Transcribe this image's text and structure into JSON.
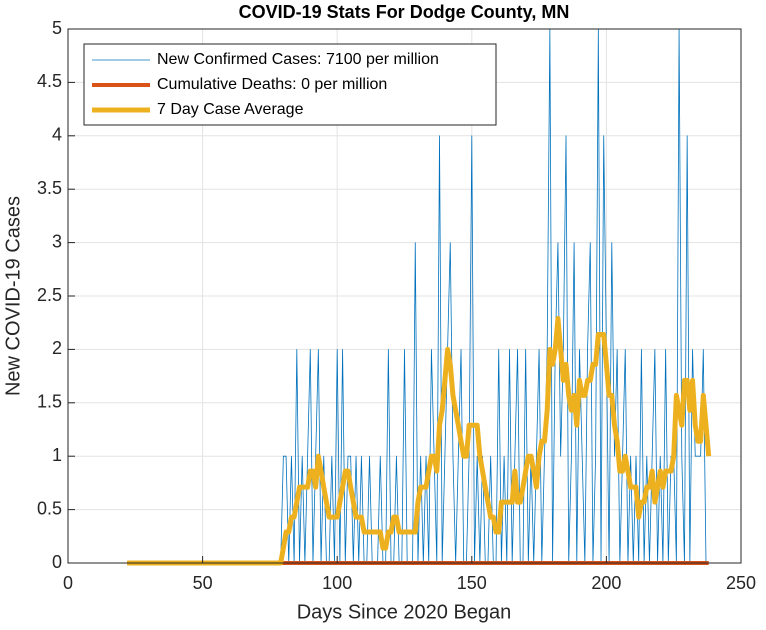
{
  "chart_data": {
    "type": "line",
    "title": "COVID-19 Stats For Dodge County, MN",
    "xlabel": "Days Since 2020 Began",
    "ylabel": "New COVID-19 Cases",
    "xlim": [
      0,
      250
    ],
    "xticks": [
      0,
      50,
      100,
      150,
      200,
      250
    ],
    "ylim": [
      0,
      5
    ],
    "yticks": [
      0,
      0.5,
      1,
      1.5,
      2,
      2.5,
      3,
      3.5,
      4,
      4.5,
      5
    ],
    "grid": true,
    "legend": "upper left",
    "x": [
      22,
      23,
      24,
      25,
      26,
      27,
      28,
      29,
      30,
      31,
      32,
      33,
      34,
      35,
      36,
      37,
      38,
      39,
      40,
      41,
      42,
      43,
      44,
      45,
      46,
      47,
      48,
      49,
      50,
      51,
      52,
      53,
      54,
      55,
      56,
      57,
      58,
      59,
      60,
      61,
      62,
      63,
      64,
      65,
      66,
      67,
      68,
      69,
      70,
      71,
      72,
      73,
      74,
      75,
      76,
      77,
      78,
      79,
      80,
      81,
      82,
      83,
      84,
      85,
      86,
      87,
      88,
      89,
      90,
      91,
      92,
      93,
      94,
      95,
      96,
      97,
      98,
      99,
      100,
      101,
      102,
      103,
      104,
      105,
      106,
      107,
      108,
      109,
      110,
      111,
      112,
      113,
      114,
      115,
      116,
      117,
      118,
      119,
      120,
      121,
      122,
      123,
      124,
      125,
      126,
      127,
      128,
      129,
      130,
      131,
      132,
      133,
      134,
      135,
      136,
      137,
      138,
      139,
      140,
      141,
      142,
      143,
      144,
      145,
      146,
      147,
      148,
      149,
      150,
      151,
      152,
      153,
      154,
      155,
      156,
      157,
      158,
      159,
      160,
      161,
      162,
      163,
      164,
      165,
      166,
      167,
      168,
      169,
      170,
      171,
      172,
      173,
      174,
      175,
      176,
      177,
      178,
      179,
      180,
      181,
      182,
      183,
      184,
      185,
      186,
      187,
      188,
      189,
      190,
      191,
      192,
      193,
      194,
      195,
      196,
      197,
      198,
      199,
      200,
      201,
      202,
      203,
      204,
      205,
      206,
      207,
      208,
      209,
      210,
      211,
      212,
      213,
      214,
      215,
      216,
      217,
      218,
      219,
      220,
      221,
      222,
      223,
      224,
      225,
      226,
      227,
      228,
      229,
      230,
      231,
      232,
      233,
      234,
      235,
      236,
      237,
      238
    ],
    "series": [
      {
        "name": "New Confirmed Cases: 7100 per million",
        "color": "#0072bd",
        "width": 0.8,
        "values": [
          0,
          0,
          0,
          0,
          0,
          0,
          0,
          0,
          0,
          0,
          0,
          0,
          0,
          0,
          0,
          0,
          0,
          0,
          0,
          0,
          0,
          0,
          0,
          0,
          0,
          0,
          0,
          0,
          0,
          0,
          0,
          0,
          0,
          0,
          0,
          0,
          0,
          0,
          0,
          0,
          0,
          0,
          0,
          0,
          0,
          0,
          0,
          0,
          0,
          0,
          0,
          0,
          0,
          0,
          0,
          0,
          0,
          0,
          1,
          1,
          0,
          1,
          0,
          2,
          0,
          1,
          0,
          1,
          2,
          0,
          1,
          2,
          0,
          1,
          0,
          0,
          1,
          0,
          2,
          0,
          2,
          0,
          1,
          1,
          0,
          1,
          0,
          1,
          0,
          0,
          1,
          0,
          0,
          0,
          1,
          0,
          0,
          2,
          0,
          0,
          1,
          0,
          0,
          2,
          0,
          0,
          0,
          3,
          0,
          1,
          0,
          1,
          0,
          2,
          1,
          0,
          4,
          0,
          1,
          2,
          3,
          1,
          0,
          1,
          2,
          0,
          0,
          1,
          4,
          0,
          1,
          0,
          1,
          0,
          0,
          1,
          0,
          0,
          2,
          0,
          1,
          0,
          2,
          0,
          1,
          2,
          0,
          0,
          2,
          0,
          1,
          0,
          1,
          2,
          0,
          1,
          2,
          5,
          0,
          2,
          3,
          1,
          2,
          4,
          0,
          1,
          3,
          0,
          2,
          1,
          0,
          2,
          3,
          0,
          1,
          5,
          0,
          4,
          2,
          0,
          3,
          1,
          2,
          0,
          1,
          2,
          0,
          1,
          0,
          1,
          0,
          2,
          0,
          1,
          0,
          1,
          2,
          0,
          1,
          0,
          2,
          0,
          1,
          1,
          0,
          5,
          1,
          0,
          4,
          0,
          2,
          1,
          1,
          1,
          2,
          0,
          0
        ]
      },
      {
        "name": "Cumulative Deaths: 0 per million",
        "color": "#d95319",
        "width": 4,
        "values": [
          0,
          0,
          0,
          0,
          0,
          0,
          0,
          0,
          0,
          0,
          0,
          0,
          0,
          0,
          0,
          0,
          0,
          0,
          0,
          0,
          0,
          0,
          0,
          0,
          0,
          0,
          0,
          0,
          0,
          0,
          0,
          0,
          0,
          0,
          0,
          0,
          0,
          0,
          0,
          0,
          0,
          0,
          0,
          0,
          0,
          0,
          0,
          0,
          0,
          0,
          0,
          0,
          0,
          0,
          0,
          0,
          0,
          0,
          0,
          0,
          0,
          0,
          0,
          0,
          0,
          0,
          0,
          0,
          0,
          0,
          0,
          0,
          0,
          0,
          0,
          0,
          0,
          0,
          0,
          0,
          0,
          0,
          0,
          0,
          0,
          0,
          0,
          0,
          0,
          0,
          0,
          0,
          0,
          0,
          0,
          0,
          0,
          0,
          0,
          0,
          0,
          0,
          0,
          0,
          0,
          0,
          0,
          0,
          0,
          0,
          0,
          0,
          0,
          0,
          0,
          0,
          0,
          0,
          0,
          0,
          0,
          0,
          0,
          0,
          0,
          0,
          0,
          0,
          0,
          0,
          0,
          0,
          0,
          0,
          0,
          0,
          0,
          0,
          0,
          0,
          0,
          0,
          0,
          0,
          0,
          0,
          0,
          0,
          0,
          0,
          0,
          0,
          0,
          0,
          0,
          0,
          0,
          0,
          0,
          0,
          0,
          0,
          0,
          0,
          0,
          0,
          0,
          0,
          0,
          0,
          0,
          0,
          0,
          0,
          0,
          0,
          0,
          0,
          0,
          0,
          0,
          0,
          0,
          0,
          0,
          0,
          0,
          0,
          0,
          0,
          0,
          0,
          0,
          0,
          0,
          0,
          0,
          0,
          0,
          0,
          0,
          0,
          0,
          0,
          0,
          0,
          0,
          0,
          0,
          0,
          0,
          0,
          0,
          0,
          0,
          0,
          0
        ]
      },
      {
        "name": "7 Day Case Average",
        "color": "#edb120",
        "width": 5,
        "values": [
          0,
          0,
          0,
          0,
          0,
          0,
          0,
          0,
          0,
          0,
          0,
          0,
          0,
          0,
          0,
          0,
          0,
          0,
          0,
          0,
          0,
          0,
          0,
          0,
          0,
          0,
          0,
          0,
          0,
          0,
          0,
          0,
          0,
          0,
          0,
          0,
          0,
          0,
          0,
          0,
          0,
          0,
          0,
          0,
          0,
          0,
          0,
          0,
          0,
          0,
          0,
          0,
          0,
          0,
          0,
          0,
          0,
          0,
          0.14,
          0.29,
          0.29,
          0.43,
          0.43,
          0.57,
          0.71,
          0.71,
          0.71,
          0.71,
          0.86,
          0.86,
          0.71,
          1.0,
          0.86,
          0.71,
          0.57,
          0.43,
          0.43,
          0.43,
          0.43,
          0.57,
          0.71,
          0.86,
          0.86,
          0.71,
          0.57,
          0.43,
          0.43,
          0.43,
          0.29,
          0.29,
          0.29,
          0.29,
          0.29,
          0.29,
          0.29,
          0.14,
          0.14,
          0.29,
          0.29,
          0.43,
          0.43,
          0.29,
          0.29,
          0.29,
          0.29,
          0.29,
          0.29,
          0.29,
          0.57,
          0.71,
          0.71,
          0.71,
          0.86,
          1.0,
          1.0,
          0.86,
          1.29,
          1.43,
          1.71,
          2.0,
          1.86,
          1.57,
          1.43,
          1.29,
          1.14,
          1.0,
          1.0,
          1.29,
          1.29,
          1.29,
          1.29,
          1.0,
          0.86,
          0.71,
          0.57,
          0.43,
          0.43,
          0.29,
          0.29,
          0.57,
          0.57,
          0.57,
          0.57,
          0.57,
          0.86,
          0.57,
          0.57,
          0.71,
          0.86,
          1.0,
          1.0,
          0.86,
          0.71,
          1.0,
          1.14,
          1.14,
          1.43,
          2.0,
          1.86,
          2.0,
          2.29,
          2.0,
          1.71,
          1.86,
          1.57,
          1.43,
          1.57,
          1.29,
          1.71,
          1.57,
          1.57,
          1.71,
          1.71,
          1.86,
          1.86,
          2.14,
          2.14,
          2.14,
          1.86,
          1.57,
          1.57,
          1.29,
          1.14,
          0.86,
          0.86,
          1.0,
          0.86,
          0.71,
          0.71,
          0.71,
          0.43,
          0.57,
          0.57,
          0.71,
          0.71,
          0.86,
          0.57,
          0.71,
          0.86,
          0.71,
          0.86,
          0.86,
          0.86,
          1.0,
          1.57,
          1.43,
          1.29,
          1.71,
          1.71,
          1.43,
          1.71,
          1.29,
          1.14,
          1.14,
          1.57,
          1.29,
          1.0
        ]
      }
    ]
  }
}
